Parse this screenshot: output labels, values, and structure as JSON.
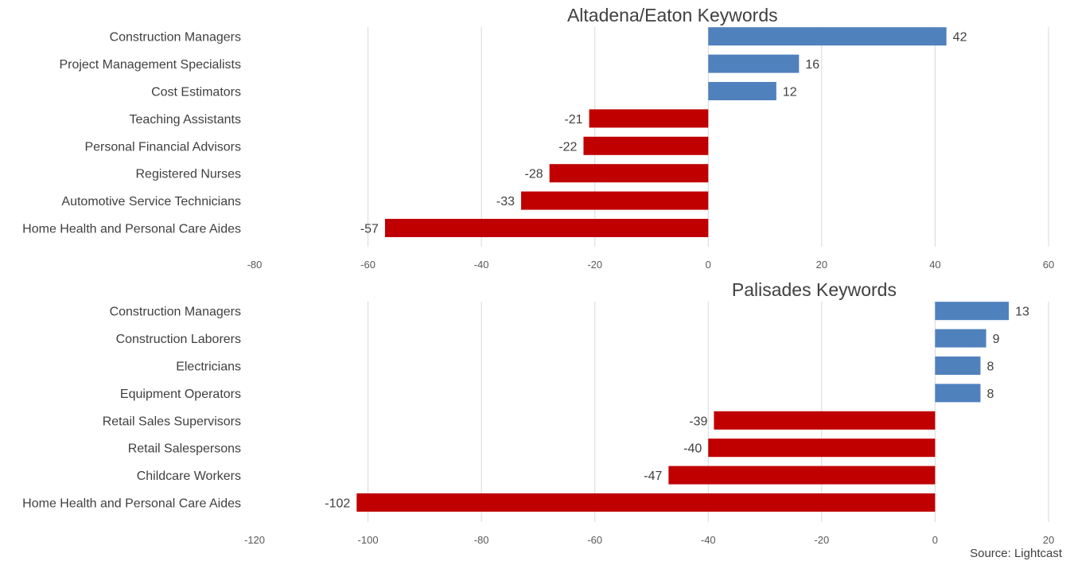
{
  "chart_data": [
    {
      "type": "bar",
      "orientation": "horizontal",
      "title": "Altadena/Eaton Keywords",
      "categories": [
        "Construction Managers",
        "Project Management Specialists",
        "Cost Estimators",
        "Teaching Assistants",
        "Personal Financial Advisors",
        "Registered Nurses",
        "Automotive Service Technicians",
        "Home Health and Personal Care Aides"
      ],
      "values": [
        42,
        16,
        12,
        -21,
        -22,
        -28,
        -33,
        -57
      ],
      "xlim": [
        -80,
        60
      ],
      "xticks": [
        -80,
        -60,
        -40,
        -20,
        0,
        20,
        40,
        60
      ],
      "grid": true,
      "data_labels": true,
      "colors": {
        "positive": "#4F81BD",
        "negative": "#C00000"
      }
    },
    {
      "type": "bar",
      "orientation": "horizontal",
      "title": "Palisades Keywords",
      "categories": [
        "Construction Managers",
        "Construction Laborers",
        "Electricians",
        "Equipment Operators",
        "Retail Sales Supervisors",
        "Retail Salespersons",
        "Childcare Workers",
        "Home Health and Personal Care Aides"
      ],
      "values": [
        13,
        9,
        8,
        8,
        -39,
        -40,
        -47,
        -102
      ],
      "xlim": [
        -120,
        20
      ],
      "xticks": [
        -120,
        -100,
        -80,
        -60,
        -40,
        -20,
        0,
        20
      ],
      "grid": true,
      "data_labels": true,
      "colors": {
        "positive": "#4F81BD",
        "negative": "#C00000"
      }
    }
  ],
  "source": "Source: Lightcast"
}
